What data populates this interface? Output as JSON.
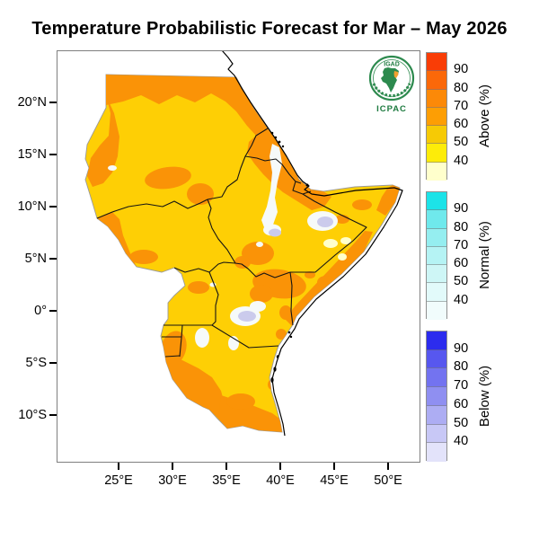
{
  "title": "Temperature Probabilistic Forecast for Mar – May 2026",
  "logo": {
    "top_text": "IGAD",
    "bottom_text": "ICPAC"
  },
  "axes": {
    "y_ticks": [
      {
        "label": "20°N"
      },
      {
        "label": "15°N"
      },
      {
        "label": "10°N"
      },
      {
        "label": "5°N"
      },
      {
        "label": "0°"
      },
      {
        "label": "5°S"
      },
      {
        "label": "10°S"
      }
    ],
    "x_ticks": [
      {
        "label": "25°E"
      },
      {
        "label": "30°E"
      },
      {
        "label": "35°E"
      },
      {
        "label": "40°E"
      },
      {
        "label": "45°E"
      },
      {
        "label": "50°E"
      }
    ]
  },
  "legend": {
    "groups": [
      {
        "title": "Above (%)",
        "tick_labels": [
          "90",
          "80",
          "70",
          "60",
          "50",
          "40"
        ],
        "colors": [
          "#f93d06",
          "#fb6809",
          "#fc8908",
          "#fd9e04",
          "#f6ca05",
          "#fdec09",
          "#ffffcc"
        ]
      },
      {
        "title": "Normal (%)",
        "tick_labels": [
          "90",
          "80",
          "70",
          "60",
          "50",
          "40"
        ],
        "colors": [
          "#1ce3e8",
          "#6fe9ec",
          "#95eef0",
          "#b5f3f4",
          "#cef6f6",
          "#e2fafa",
          "#f1fcfc"
        ]
      },
      {
        "title": "Below (%)",
        "tick_labels": [
          "90",
          "80",
          "70",
          "60",
          "50",
          "40"
        ],
        "colors": [
          "#2c2cee",
          "#5757ef",
          "#7373f0",
          "#8f8ff1",
          "#adadf3",
          "#c8c8f6",
          "#e3e3fa"
        ]
      }
    ]
  },
  "map_colors": {
    "yellow": "#fecf05",
    "orange": "#fa9307",
    "cream": "#ffffcc",
    "white_patch": "#f6faf9",
    "lavender": "#cbcbec",
    "raster_edge": "#9a9a9a",
    "border": "#141414",
    "coast": "#000000",
    "ocean": "#ffffff"
  },
  "chart_data": {
    "type": "map",
    "subtype": "probabilistic tercile forecast (choropleth over Greater Horn of Africa)",
    "title": "Temperature Probabilistic Forecast for Mar – May 2026",
    "x_axis_ticks": [
      "25°E",
      "30°E",
      "35°E",
      "40°E",
      "45°E",
      "50°E"
    ],
    "y_axis_ticks": [
      "20°N",
      "15°N",
      "10°N",
      "5°N",
      "0°",
      "5°S",
      "10°S"
    ],
    "colorbars": [
      {
        "name": "Above (%)",
        "boundaries": [
          90,
          80,
          70,
          60,
          50,
          40
        ],
        "colors_top_to_bottom": [
          "#f93d06",
          "#fb6809",
          "#fc8908",
          "#fd9e04",
          "#f6ca05",
          "#fdec09",
          "#ffffcc"
        ]
      },
      {
        "name": "Normal (%)",
        "boundaries": [
          90,
          80,
          70,
          60,
          50,
          40
        ],
        "colors_top_to_bottom": [
          "#1ce3e8",
          "#6fe9ec",
          "#95eef0",
          "#b5f3f4",
          "#cef6f6",
          "#e2fafa",
          "#f1fcfc"
        ]
      },
      {
        "name": "Below (%)",
        "boundaries": [
          90,
          80,
          70,
          60,
          50,
          40
        ],
        "colors_top_to_bottom": [
          "#2c2cee",
          "#5757ef",
          "#7373f0",
          "#8f8ff1",
          "#adadf3",
          "#c8c8f6",
          "#e3e3fa"
        ]
      }
    ],
    "dominant_pattern": "Nearly the whole region is in the Above-normal category: yellow areas 50–60% and orange areas 60–70% probability. Orange dominates northern Sudan, the Red Sea coast/Eritrea, northern Kenya, the Somali coastal strip, Rwanda–Burundi and south-western/southern Tanzania. Small white and pale-lavender pockets (no clear above signal) occur in the Ethiopian Rift, south-eastern Ethiopia, central Kenya and north-central Tanzania."
  }
}
